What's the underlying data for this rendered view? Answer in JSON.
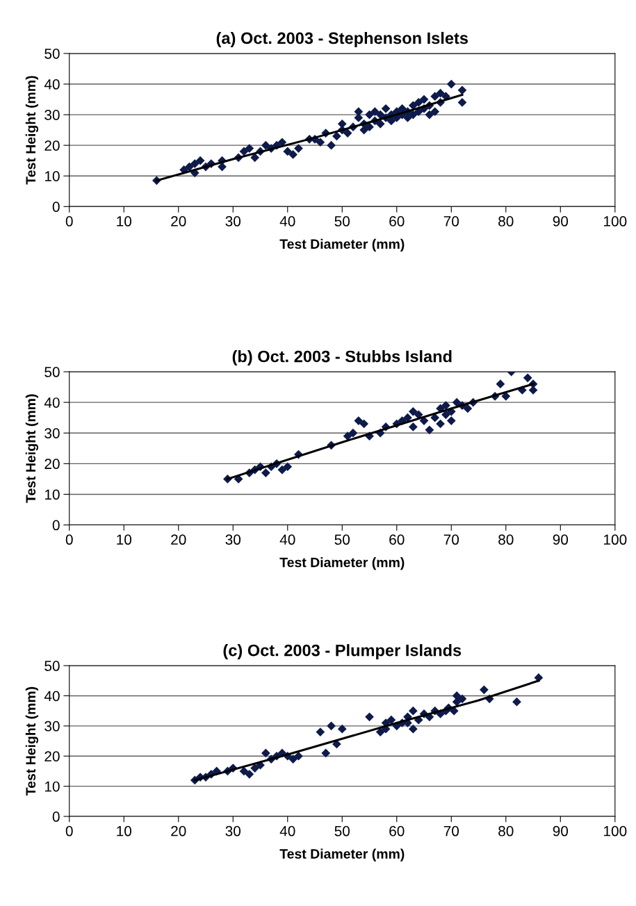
{
  "chart_data": [
    {
      "type": "scatter",
      "title": "(a) Oct. 2003 - Stephenson Islets",
      "xlabel": "Test Diameter (mm)",
      "ylabel": "Test Height (mm)",
      "xlim": [
        0,
        100
      ],
      "ylim": [
        0,
        50
      ],
      "xticks": [
        0,
        10,
        20,
        30,
        40,
        50,
        60,
        70,
        80,
        90,
        100
      ],
      "yticks": [
        0,
        10,
        20,
        30,
        40,
        50
      ],
      "grid": "y",
      "legend": false,
      "marker": "diamond",
      "series": [
        {
          "color": "#0d1a4a",
          "x": [
            16,
            21,
            22,
            23,
            23,
            24,
            25,
            26,
            28,
            28,
            31,
            32,
            33,
            34,
            35,
            36,
            37,
            38,
            39,
            40,
            41,
            42,
            44,
            45,
            46,
            47,
            48,
            49,
            50,
            50,
            51,
            52,
            53,
            53,
            54,
            54,
            55,
            55,
            56,
            56,
            57,
            57,
            58,
            58,
            59,
            59,
            60,
            60,
            61,
            61,
            62,
            62,
            63,
            63,
            64,
            64,
            65,
            65,
            66,
            66,
            67,
            67,
            68,
            68,
            69,
            70,
            72,
            72
          ],
          "values": [
            8.5,
            12,
            13,
            14,
            11,
            15,
            13,
            14,
            15,
            13,
            16,
            18,
            19,
            16,
            18,
            20,
            19,
            20,
            21,
            18,
            17,
            19,
            22,
            22,
            21,
            24,
            20,
            23,
            25,
            27,
            24,
            26,
            29,
            31,
            25,
            27,
            26,
            30,
            28,
            31,
            27,
            30,
            29,
            32,
            30,
            28,
            31,
            29,
            30,
            32,
            31,
            29,
            33,
            30,
            34,
            31,
            35,
            32,
            33,
            30,
            36,
            31,
            37,
            34,
            36,
            40,
            38,
            34
          ]
        },
        {
          "type": "line",
          "color": "#000000",
          "marker": "none",
          "x": [
            16,
            30,
            45,
            60,
            72
          ],
          "values": [
            8.5,
            15.5,
            22.5,
            30,
            36.5
          ]
        }
      ]
    },
    {
      "type": "scatter",
      "title": "(b) Oct. 2003 - Stubbs Island",
      "xlabel": "Test Diameter (mm)",
      "ylabel": "Test Height (mm)",
      "xlim": [
        0,
        100
      ],
      "ylim": [
        0,
        50
      ],
      "xticks": [
        0,
        10,
        20,
        30,
        40,
        50,
        60,
        70,
        80,
        90,
        100
      ],
      "yticks": [
        0,
        10,
        20,
        30,
        40,
        50
      ],
      "grid": "y",
      "legend": false,
      "marker": "diamond",
      "series": [
        {
          "color": "#0d1a4a",
          "x": [
            29,
            31,
            33,
            34,
            35,
            36,
            37,
            38,
            39,
            40,
            42,
            48,
            51,
            52,
            53,
            54,
            55,
            57,
            58,
            60,
            61,
            62,
            63,
            63,
            64,
            65,
            66,
            67,
            68,
            68,
            69,
            69,
            70,
            70,
            71,
            72,
            73,
            74,
            78,
            79,
            80,
            81,
            83,
            84,
            85,
            85
          ],
          "values": [
            15,
            15,
            17,
            18,
            19,
            17,
            19,
            20,
            18,
            19,
            23,
            26,
            29,
            30,
            34,
            33,
            29,
            30,
            32,
            33,
            34,
            35,
            37,
            32,
            36,
            34,
            31,
            35,
            38,
            33,
            39,
            36,
            37,
            34,
            40,
            39,
            38,
            40,
            42,
            46,
            42,
            50,
            44,
            48,
            46,
            44
          ]
        },
        {
          "type": "line",
          "color": "#000000",
          "marker": "none",
          "x": [
            29,
            50,
            70,
            85
          ],
          "values": [
            15,
            27,
            38,
            46
          ]
        }
      ]
    },
    {
      "type": "scatter",
      "title": "(c) Oct. 2003 - Plumper Islands",
      "xlabel": "Test Diameter (mm)",
      "ylabel": "Test Height (mm)",
      "xlim": [
        0,
        100
      ],
      "ylim": [
        0,
        50
      ],
      "xticks": [
        0,
        10,
        20,
        30,
        40,
        50,
        60,
        70,
        80,
        90,
        100
      ],
      "yticks": [
        0,
        10,
        20,
        30,
        40,
        50
      ],
      "grid": "y",
      "legend": false,
      "marker": "diamond",
      "series": [
        {
          "color": "#0d1a4a",
          "x": [
            23,
            24,
            25,
            26,
            27,
            29,
            30,
            32,
            33,
            34,
            35,
            36,
            37,
            38,
            39,
            40,
            41,
            42,
            46,
            47,
            48,
            49,
            50,
            55,
            57,
            58,
            58,
            59,
            60,
            61,
            62,
            62,
            63,
            63,
            64,
            65,
            66,
            67,
            68,
            69,
            69.5,
            70.5,
            71,
            71,
            72,
            76,
            77,
            82,
            86
          ],
          "values": [
            12,
            13,
            13,
            14,
            15,
            15,
            16,
            15,
            14,
            16,
            17,
            21,
            19,
            20,
            21,
            20,
            19,
            20,
            28,
            21,
            30,
            24,
            29,
            33,
            28,
            29,
            31,
            32,
            30,
            31,
            33,
            31,
            35,
            29,
            32,
            34,
            33,
            35,
            34,
            35,
            36,
            35,
            38,
            40,
            39,
            42,
            39,
            38,
            46
          ]
        },
        {
          "type": "line",
          "color": "#000000",
          "marker": "none",
          "x": [
            23,
            40,
            60,
            75,
            86
          ],
          "values": [
            12,
            20.5,
            31,
            38.5,
            45
          ]
        }
      ]
    }
  ]
}
